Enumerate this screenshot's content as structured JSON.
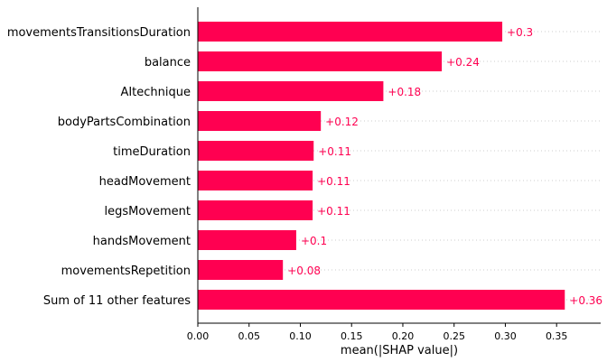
{
  "chart_data": {
    "type": "bar",
    "orientation": "horizontal",
    "categories": [
      "movementsTransitionsDuration",
      "balance",
      "AItechnique",
      "bodyPartsCombination",
      "timeDuration",
      "headMovement",
      "legsMovement",
      "handsMovement",
      "movementsRepetition",
      "Sum of 11 other features"
    ],
    "values": [
      0.297,
      0.238,
      0.181,
      0.12,
      0.113,
      0.112,
      0.112,
      0.096,
      0.083,
      0.358
    ],
    "value_labels": [
      "+0.3",
      "+0.24",
      "+0.18",
      "+0.12",
      "+0.11",
      "+0.11",
      "+0.11",
      "+0.1",
      "+0.08",
      "+0.36"
    ],
    "xlabel": "mean(|SHAP value|)",
    "xlim": [
      0,
      0.393
    ],
    "xticks": [
      0.0,
      0.05,
      0.1,
      0.15,
      0.2,
      0.25,
      0.3,
      0.35
    ],
    "xtick_labels": [
      "0.00",
      "0.05",
      "0.10",
      "0.15",
      "0.20",
      "0.25",
      "0.30",
      "0.35"
    ],
    "bar_color": "#ff0051",
    "label_color": "#ff0051",
    "grid": "horizontal dotted",
    "legend": "none"
  }
}
